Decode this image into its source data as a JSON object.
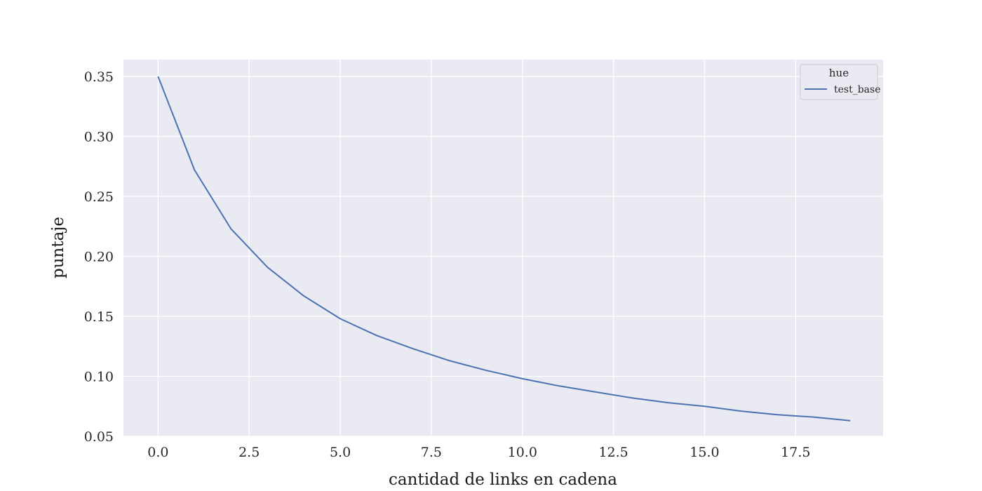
{
  "chart_data": {
    "type": "line",
    "title": "",
    "xlabel": "cantidad de links en cadena",
    "ylabel": "puntaje",
    "xlim": [
      -0.95,
      19.9
    ],
    "ylim": [
      0.05,
      0.364
    ],
    "xticks": [
      0.0,
      2.5,
      5.0,
      7.5,
      10.0,
      12.5,
      15.0,
      17.5
    ],
    "xtick_labels": [
      "0.0",
      "2.5",
      "5.0",
      "7.5",
      "10.0",
      "12.5",
      "15.0",
      "17.5"
    ],
    "yticks": [
      0.05,
      0.1,
      0.15,
      0.2,
      0.25,
      0.3,
      0.35
    ],
    "ytick_labels": [
      "0.05",
      "0.10",
      "0.15",
      "0.20",
      "0.25",
      "0.30",
      "0.35"
    ],
    "grid": true,
    "legend": {
      "title": "hue",
      "placement": "top-right"
    },
    "background_color": "#eaeaf2",
    "grid_color": "#ffffff",
    "series": [
      {
        "name": "test_base",
        "color": "#4c72b0",
        "x": [
          0,
          1,
          2,
          3,
          4,
          5,
          6,
          7,
          8,
          9,
          10,
          11,
          12,
          13,
          14,
          15,
          16,
          17,
          18,
          19
        ],
        "y": [
          0.35,
          0.272,
          0.223,
          0.191,
          0.167,
          0.148,
          0.134,
          0.123,
          0.113,
          0.105,
          0.098,
          0.092,
          0.087,
          0.082,
          0.078,
          0.075,
          0.071,
          0.068,
          0.066,
          0.063
        ]
      }
    ]
  }
}
